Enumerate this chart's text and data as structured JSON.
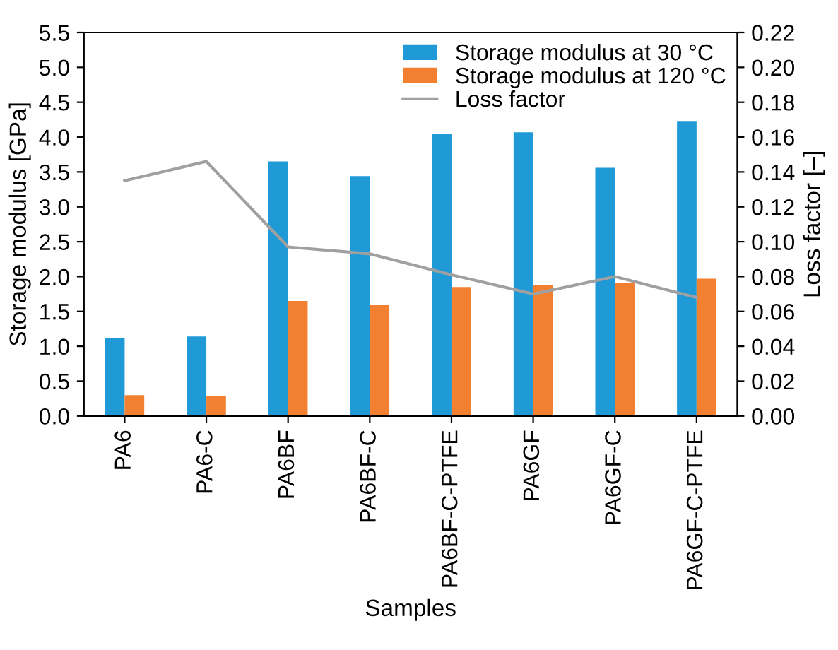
{
  "chart_data": {
    "type": "bar",
    "xlabel": "Samples",
    "ylabel": "Storage modulus [GPa]",
    "y2label": "Loss factor [–]",
    "categories": [
      "PA6",
      "PA6-C",
      "PA6BF",
      "PA6BF-C",
      "PA6BF-C-PTFE",
      "PA6GF",
      "PA6GF-C",
      "PA6GF-C-PTFE"
    ],
    "series": [
      {
        "name": "Storage modulus at 30 °C",
        "color": "#1f9ad6",
        "values": [
          1.12,
          1.14,
          3.65,
          3.44,
          4.04,
          4.07,
          3.56,
          4.23
        ]
      },
      {
        "name": "Storage modulus at 120 °C",
        "color": "#f28030",
        "values": [
          0.3,
          0.29,
          1.65,
          1.6,
          1.85,
          1.88,
          1.91,
          1.97
        ]
      },
      {
        "name": "Loss factor",
        "type": "line",
        "axis": "y2",
        "color": "#a0a0a0",
        "values": [
          0.135,
          0.146,
          0.097,
          0.093,
          0.081,
          0.07,
          0.08,
          0.068
        ]
      }
    ],
    "ylim": [
      0,
      5.5
    ],
    "yticks": [
      {
        "value": 0,
        "label": "0.0"
      },
      0.5,
      {
        "value": 1,
        "label": "1.0"
      },
      1.5,
      {
        "value": 2,
        "label": "2.0"
      },
      2.5,
      {
        "value": 3,
        "label": "3.0"
      },
      3.5,
      {
        "value": 4,
        "label": "4.0"
      },
      4.5,
      {
        "value": 5,
        "label": "5.0"
      },
      5.5
    ],
    "y2lim": [
      0,
      0.22
    ],
    "y2ticks": [
      {
        "value": 0,
        "label": "0.00"
      },
      0.02,
      0.04,
      0.06,
      0.08,
      {
        "value": 0.1,
        "label": "0.10"
      },
      0.12,
      0.14,
      0.16,
      0.18,
      {
        "value": 0.2,
        "label": "0.20"
      },
      0.22
    ],
    "grid": false,
    "legend": "top right"
  }
}
